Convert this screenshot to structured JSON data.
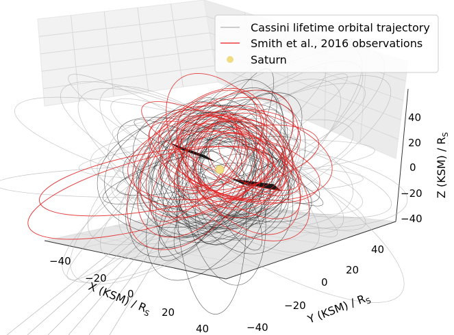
{
  "chart_data": {
    "type": "line",
    "projection": "3d",
    "grid": true,
    "legend_position": "top-right",
    "x_axis": {
      "label": "X (KSM) / R",
      "label_sub": "S",
      "ticks": [
        "−40",
        "−20",
        "0",
        "20",
        "40"
      ],
      "lim": [
        -50,
        50
      ]
    },
    "y_axis": {
      "label": "Y (KSM) / R",
      "label_sub": "S",
      "ticks": [
        "−40",
        "−20",
        "0",
        "20",
        "40"
      ],
      "lim": [
        -50,
        50
      ]
    },
    "z_axis": {
      "label": "Z (KSM) / R",
      "label_sub": "S",
      "ticks": [
        "−40",
        "−20",
        "0",
        "20",
        "40"
      ],
      "lim": [
        -50,
        50
      ]
    },
    "series": [
      {
        "name": "Cassini lifetime orbital trajectory",
        "kind": "line",
        "color": "#bdbdbd"
      },
      {
        "name": "Smith et al., 2016 observations",
        "kind": "line",
        "color": "#ee3b3b"
      },
      {
        "name": "Saturn",
        "kind": "marker",
        "color": "#f0dc82",
        "position": [
          0,
          0,
          0
        ]
      }
    ]
  },
  "colors": {
    "pane": "#efefef",
    "grid": "#d9d9d9",
    "orbit_dense": "#1a1a1a",
    "orbit_light": "#b5b5b5",
    "observation": "#e02020",
    "saturn": "#f5e08a"
  }
}
